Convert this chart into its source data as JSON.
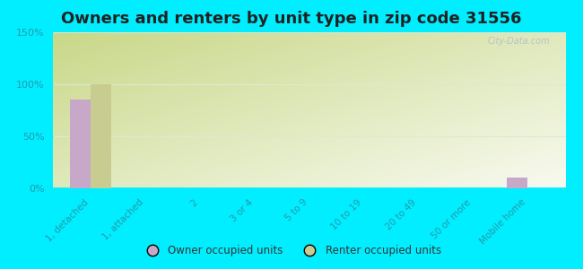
{
  "title": "Owners and renters by unit type in zip code 31556",
  "categories": [
    "1, detached",
    "1, attached",
    "2",
    "3 or 4",
    "5 to 9",
    "10 to 19",
    "20 to 49",
    "50 or more",
    "Mobile home"
  ],
  "owner_values": [
    85,
    0,
    0,
    0,
    0,
    0,
    0,
    0,
    10
  ],
  "renter_values": [
    100,
    0,
    0,
    0,
    0,
    0,
    0,
    0,
    0
  ],
  "owner_color": "#c8a8c8",
  "renter_color": "#c8cc90",
  "background_color": "#00eeff",
  "plot_bg_color_topleft": "#c8d890",
  "plot_bg_color_bottomright": "#f5f8ee",
  "ylabel_ticks": [
    "0%",
    "50%",
    "100%",
    "150%"
  ],
  "ytick_values": [
    0,
    50,
    100,
    150
  ],
  "ylim": [
    0,
    150
  ],
  "bar_width": 0.38,
  "legend_owner": "Owner occupied units",
  "legend_renter": "Renter occupied units",
  "title_fontsize": 13,
  "tick_label_color": "#2299aa",
  "grid_color": "#e0e8d0",
  "watermark": "City-Data.com"
}
